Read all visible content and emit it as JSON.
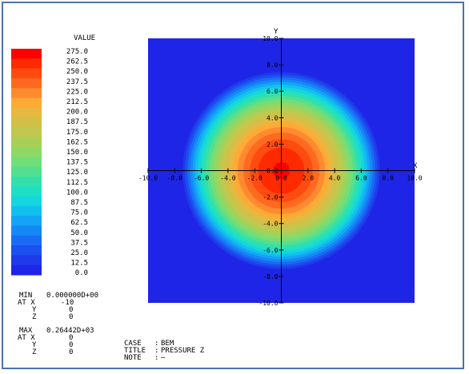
{
  "chart_data": {
    "type": "heatmap",
    "title": "",
    "xlabel": "X",
    "ylabel": "Y",
    "xlim": [
      -10,
      10
    ],
    "ylim": [
      -10,
      10
    ],
    "x_ticks": [
      "-10.0",
      "-8.0",
      "-6.0",
      "-4.0",
      "-2.0",
      "0.0",
      "2.0",
      "4.0",
      "6.0",
      "8.0",
      "10.0"
    ],
    "x_tick_values": [
      -10,
      -8,
      -6,
      -4,
      -2,
      0,
      2,
      4,
      6,
      8,
      10
    ],
    "y_ticks": [
      "10.0",
      "8.0",
      "6.0",
      "4.0",
      "2.0",
      "0.0",
      "-2.0",
      "-4.0",
      "-6.0",
      "-8.0",
      "-10.0"
    ],
    "y_tick_values": [
      10,
      8,
      6,
      4,
      2,
      0,
      -2,
      -4,
      -6,
      -8,
      -10
    ],
    "legend_title": "VALUE",
    "legend_levels": [
      "275.0",
      "262.5",
      "250.0",
      "237.5",
      "225.0",
      "212.5",
      "200.0",
      "187.5",
      "175.0",
      "162.5",
      "150.0",
      "137.5",
      "125.0",
      "112.5",
      "100.0",
      "87.5",
      "75.0",
      "62.5",
      "50.0",
      "37.5",
      "25.0",
      "12.5",
      "0.0"
    ],
    "legend_colors": [
      "#ff0000",
      "#ff2a00",
      "#ff4a10",
      "#ff6a20",
      "#ff8a30",
      "#ffaa35",
      "#e6b840",
      "#d0c048",
      "#c0c84e",
      "#a8d058",
      "#8ed866",
      "#72de78",
      "#52e090",
      "#34e0aa",
      "#1ee0c4",
      "#14d6dc",
      "#12c0ee",
      "#14a4f6",
      "#1688f6",
      "#1a6cf4",
      "#1c50ef",
      "#1e3aea",
      "#1f25e6"
    ],
    "background_color": "#1f25e6",
    "field": {
      "description_value_at_center": 264.42,
      "center": [
        0,
        0
      ],
      "radius_at_zero": 7.4
    },
    "min": {
      "label": "MIN",
      "value": "0.000000D+00",
      "at_x": "-10",
      "y": "0",
      "z": "0"
    },
    "max": {
      "label": "MAX",
      "value": "0.26442D+03",
      "at_x": "0",
      "y": "0",
      "z": "0"
    },
    "case_info": {
      "case_label": "CASE",
      "case_value": "BEM",
      "title_label": "TITLE",
      "title_value": "PRESSURE Z",
      "note_label": "NOTE",
      "note_value": "—"
    }
  },
  "labels": {
    "at_x": "AT X",
    "y": "Y",
    "z": "Z",
    "sep": ":"
  }
}
